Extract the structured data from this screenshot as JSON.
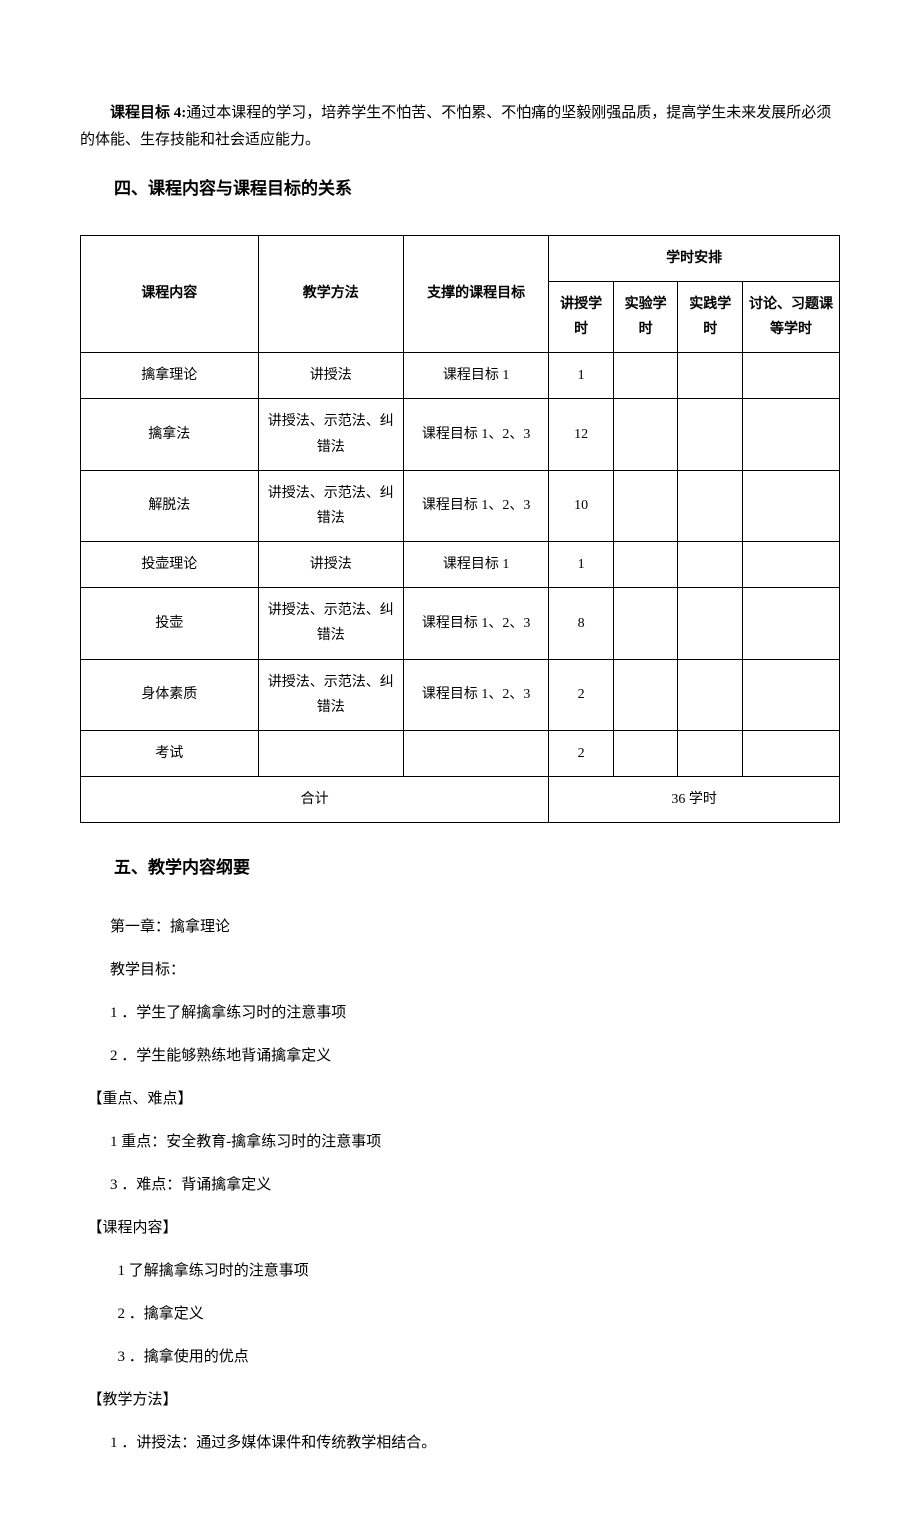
{
  "intro": {
    "goal_label": "课程目标 4:",
    "goal_text": "通过本课程的学习，培养学生不怕苦、不怕累、不怕痛的坚毅刚强品质，提高学生未来发展所必须的体能、生存技能和社会适应能力。"
  },
  "section4": {
    "heading": "四、课程内容与课程目标的关系",
    "table": {
      "header": {
        "content": "课程内容",
        "method": "教学方法",
        "goal": "支撑的课程目标",
        "hours_group": "学时安排",
        "lecture": "讲授学时",
        "experiment": "实验学时",
        "practice": "实践学时",
        "discuss": "讨论、习题课等学时"
      },
      "rows": [
        {
          "content": "擒拿理论",
          "method": "讲授法",
          "goal": "课程目标 1",
          "lecture": "1",
          "experiment": "",
          "practice": "",
          "discuss": ""
        },
        {
          "content": "擒拿法",
          "method": "讲授法、示范法、纠错法",
          "goal": "课程目标 1、2、3",
          "lecture": "12",
          "experiment": "",
          "practice": "",
          "discuss": ""
        },
        {
          "content": "解脱法",
          "method": "讲授法、示范法、纠错法",
          "goal": "课程目标 1、2、3",
          "lecture": "10",
          "experiment": "",
          "practice": "",
          "discuss": ""
        },
        {
          "content": "投壶理论",
          "method": "讲授法",
          "goal": "课程目标 1",
          "lecture": "1",
          "experiment": "",
          "practice": "",
          "discuss": ""
        },
        {
          "content": "投壶",
          "method": "讲授法、示范法、纠错法",
          "goal": "课程目标 1、2、3",
          "lecture": "8",
          "experiment": "",
          "practice": "",
          "discuss": ""
        },
        {
          "content": "身体素质",
          "method": "讲授法、示范法、纠错法",
          "goal": "课程目标 1、2、3",
          "lecture": "2",
          "experiment": "",
          "practice": "",
          "discuss": ""
        },
        {
          "content": "考试",
          "method": "",
          "goal": "",
          "lecture": "2",
          "experiment": "",
          "practice": "",
          "discuss": ""
        }
      ],
      "footer": {
        "total_label": "合计",
        "total_value": "36 学时"
      }
    }
  },
  "section5": {
    "heading": "五、教学内容纲要",
    "lines": [
      {
        "text": "第一章：擒拿理论",
        "cls": "line"
      },
      {
        "text": "教学目标：",
        "cls": "line"
      },
      {
        "text": "1 ．学生了解擒拿练习时的注意事项",
        "cls": "line"
      },
      {
        "text": "2 ．学生能够熟练地背诵擒拿定义",
        "cls": "line"
      },
      {
        "text": "【重点、难点】",
        "cls": "line-noindent"
      },
      {
        "text": "1 重点：安全教育-擒拿练习时的注意事项",
        "cls": "line"
      },
      {
        "text": "3 ．难点：背诵擒拿定义",
        "cls": "line"
      },
      {
        "text": "【课程内容】",
        "cls": "line-noindent"
      },
      {
        "text": "1 了解擒拿练习时的注意事项",
        "cls": "line-indent2"
      },
      {
        "text": "2 ．擒拿定义",
        "cls": "line-indent2"
      },
      {
        "text": "3 ．擒拿使用的优点",
        "cls": "line-indent2"
      },
      {
        "text": "【教学方法】",
        "cls": "line-noindent"
      },
      {
        "text": "1 ．讲授法：通过多媒体课件和传统教学相结合。",
        "cls": "line"
      }
    ]
  }
}
